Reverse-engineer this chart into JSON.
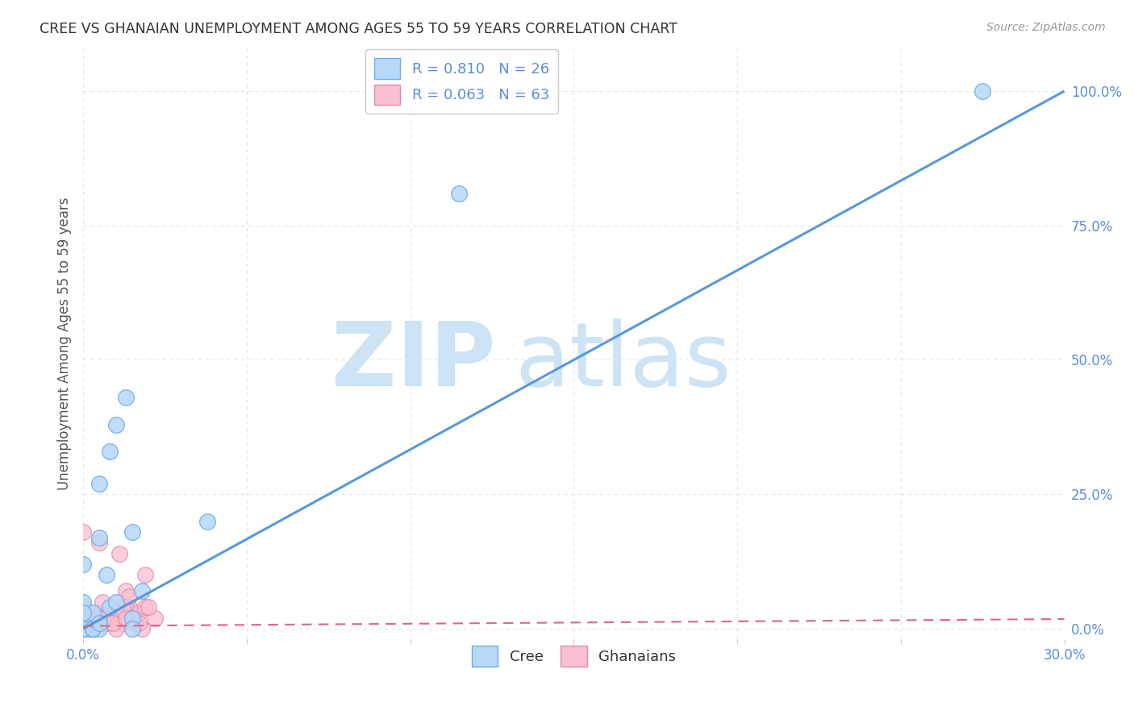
{
  "title": "CREE VS GHANAIAN UNEMPLOYMENT AMONG AGES 55 TO 59 YEARS CORRELATION CHART",
  "source": "Source: ZipAtlas.com",
  "ylabel": "Unemployment Among Ages 55 to 59 years",
  "xlim": [
    0.0,
    0.3
  ],
  "ylim": [
    -0.02,
    1.08
  ],
  "yticks": [
    0.0,
    0.25,
    0.5,
    0.75,
    1.0
  ],
  "ytick_labels": [
    "0.0%",
    "25.0%",
    "50.0%",
    "75.0%",
    "100.0%"
  ],
  "cree_R": "0.810",
  "cree_N": "26",
  "ghanaian_R": "0.063",
  "ghanaian_N": "63",
  "cree_color": "#b8d8f8",
  "cree_edge_color": "#6aaee8",
  "cree_line_color": "#5599dd",
  "ghanaian_color": "#f8c0d0",
  "ghanaian_edge_color": "#e888a8",
  "ghanaian_line_color": "#dd6688",
  "watermark": "ZIPatlas",
  "watermark_color": "#cce4f5",
  "label_color": "#5b8dd9",
  "cree_points_x": [
    0.0,
    0.005,
    0.008,
    0.01,
    0.013,
    0.007,
    0.003,
    0.015,
    0.0,
    0.005,
    0.008,
    0.003,
    0.015,
    0.018,
    0.003,
    0.0,
    0.005,
    0.01,
    0.003,
    0.0,
    0.115,
    0.015,
    0.0,
    0.005,
    0.275,
    0.038
  ],
  "cree_points_y": [
    0.05,
    0.27,
    0.33,
    0.38,
    0.43,
    0.1,
    0.03,
    0.02,
    0.0,
    0.17,
    0.04,
    0.0,
    0.0,
    0.07,
    0.0,
    0.0,
    0.0,
    0.05,
    0.0,
    0.12,
    0.81,
    0.18,
    0.03,
    0.01,
    1.0,
    0.2
  ],
  "ghanaian_points_x": [
    0.0,
    0.005,
    0.003,
    0.007,
    0.01,
    0.0,
    0.003,
    0.006,
    0.009,
    0.012,
    0.0,
    0.004,
    0.007,
    0.002,
    0.014,
    0.0,
    0.005,
    0.003,
    0.009,
    0.011,
    0.013,
    0.0,
    0.006,
    0.003,
    0.001,
    0.005,
    0.009,
    0.012,
    0.005,
    0.0,
    0.003,
    0.007,
    0.01,
    0.0,
    0.004,
    0.008,
    0.003,
    0.0,
    0.005,
    0.008,
    0.011,
    0.0,
    0.003,
    0.006,
    0.002,
    0.007,
    0.01,
    0.013,
    0.005,
    0.0,
    0.003,
    0.006,
    0.009,
    0.014,
    0.019,
    0.017,
    0.019,
    0.022,
    0.016,
    0.018,
    0.02,
    0.013,
    0.017
  ],
  "ghanaian_points_y": [
    0.0,
    0.02,
    0.01,
    0.03,
    0.02,
    0.0,
    0.01,
    0.02,
    0.03,
    0.01,
    0.0,
    0.02,
    0.01,
    0.0,
    0.04,
    0.01,
    0.02,
    0.0,
    0.03,
    0.02,
    0.04,
    0.0,
    0.01,
    0.02,
    0.01,
    0.03,
    0.02,
    0.04,
    0.01,
    0.0,
    0.02,
    0.01,
    0.03,
    0.0,
    0.02,
    0.01,
    0.0,
    0.01,
    0.01,
    0.02,
    0.14,
    0.18,
    0.0,
    0.05,
    0.02,
    0.01,
    0.0,
    0.07,
    0.16,
    0.04,
    0.0,
    0.02,
    0.01,
    0.06,
    0.1,
    0.03,
    0.04,
    0.02,
    0.01,
    0.0,
    0.04,
    0.02,
    0.01
  ],
  "xticks": [
    0.0,
    0.05,
    0.1,
    0.15,
    0.2,
    0.25,
    0.3
  ],
  "cree_trend_x": [
    0.0,
    0.3
  ],
  "cree_trend_y": [
    0.0,
    1.0
  ],
  "ghanaian_trend_x": [
    0.0,
    0.3
  ],
  "ghanaian_trend_y": [
    0.005,
    0.018
  ],
  "background_color": "#ffffff",
  "grid_color": "#d8e8f0"
}
